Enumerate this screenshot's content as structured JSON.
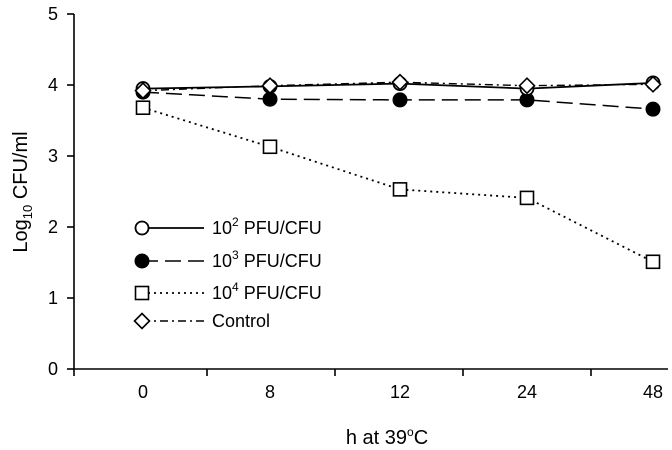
{
  "chart_data": {
    "type": "line",
    "categories": [
      "0",
      "8",
      "12",
      "24",
      "48"
    ],
    "ylim": [
      0,
      5
    ],
    "yticks": [
      "0",
      "1",
      "2",
      "3",
      "4",
      "5"
    ],
    "xlabel": {
      "main": "h at 39",
      "sup": "o",
      "tail": "C"
    },
    "ylabel": {
      "main": "Log",
      "sub": "10",
      "tail": " CFU/ml"
    },
    "legend_position": "lower-left",
    "grid": false,
    "series": [
      {
        "name": {
          "base": "10",
          "sup": "2",
          "rest": " PFU/CFU"
        },
        "marker": "open-circle",
        "line": "solid",
        "values": [
          3.95,
          3.98,
          4.02,
          3.95,
          4.03
        ]
      },
      {
        "name": {
          "base": "10",
          "sup": "3",
          "rest": " PFU/CFU"
        },
        "marker": "filled-circle",
        "line": "long-dash",
        "values": [
          3.9,
          3.8,
          3.79,
          3.79,
          3.66
        ]
      },
      {
        "name": {
          "base": "10",
          "sup": "4",
          "rest": " PFU/CFU"
        },
        "marker": "open-square",
        "line": "dotted",
        "values": [
          3.68,
          3.13,
          2.53,
          2.41,
          1.51
        ]
      },
      {
        "name": {
          "base": "Control",
          "sup": "",
          "rest": ""
        },
        "marker": "open-diamond",
        "line": "dash-dot",
        "values": [
          3.92,
          3.99,
          4.04,
          3.99,
          4.01
        ]
      }
    ]
  }
}
